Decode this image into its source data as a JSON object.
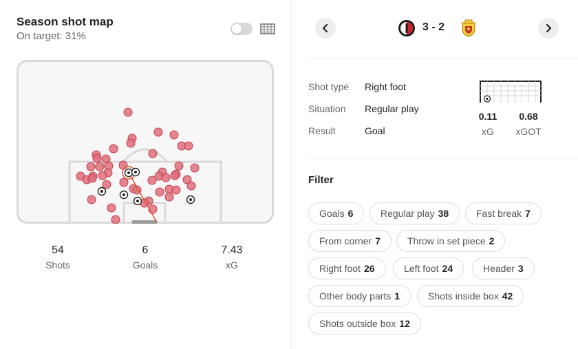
{
  "shot_map": {
    "title": "Season shot map",
    "subtitle": "On target: 31%",
    "stats": [
      {
        "value": "54",
        "label": "Shots"
      },
      {
        "value": "6",
        "label": "Goals"
      },
      {
        "value": "7.43",
        "label": "xG"
      }
    ]
  },
  "match": {
    "score": "3 - 2",
    "home_crest": "feyenoord-crest",
    "away_crest": "go-ahead-eagles-crest"
  },
  "shot_detail": {
    "rows": [
      {
        "key": "Shot type",
        "value": "Right foot"
      },
      {
        "key": "Situation",
        "value": "Regular play"
      },
      {
        "key": "Result",
        "value": "Goal"
      }
    ],
    "xg": {
      "value": "0.11",
      "label": "xG"
    },
    "xgot": {
      "value": "0.68",
      "label": "xGOT"
    }
  },
  "filter": {
    "title": "Filter",
    "chips": [
      {
        "label": "Goals",
        "count": "6"
      },
      {
        "label": "Regular play",
        "count": "38"
      },
      {
        "label": "Fast break",
        "count": "7"
      },
      {
        "label": "From corner",
        "count": "7"
      },
      {
        "label": "Throw in set piece",
        "count": "2"
      },
      {
        "label": "Right foot",
        "count": "26"
      },
      {
        "label": "Left foot",
        "count": "24"
      },
      {
        "label": "Header",
        "count": "3"
      },
      {
        "label": "Other body parts",
        "count": "1"
      },
      {
        "label": "Shots inside box",
        "count": "42"
      },
      {
        "label": "Shots outside box",
        "count": "12"
      }
    ]
  },
  "colors": {
    "shot_fill": "#e0707c",
    "shot_stroke": "#c2404f",
    "selected_line": "#e8542a",
    "pitch_line": "#d9d9d9",
    "pitch_bg": "#f7f7f7"
  },
  "icons": {
    "prev": "chevron-left-icon",
    "next": "chevron-right-icon",
    "goal_view": "goal-net-icon",
    "goal_marker": "soccer-ball-icon"
  }
}
